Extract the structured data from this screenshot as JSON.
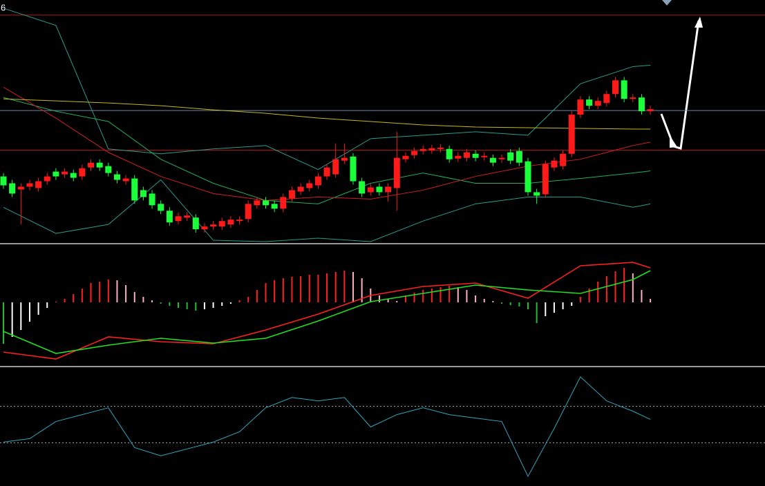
{
  "chart_data": [
    {
      "type": "candlestick",
      "annotation": "6",
      "ylim": [
        0,
        352
      ],
      "up_color": "#ff1a1a",
      "down_color": "#1aff3a",
      "open": [
        97,
        87,
        78,
        82,
        80,
        90,
        104,
        100,
        102,
        97,
        110,
        117,
        112,
        100,
        90,
        94,
        77,
        72,
        57,
        47,
        32,
        37,
        37,
        20,
        24,
        24,
        27,
        32,
        35,
        55,
        62,
        57,
        50,
        65,
        75,
        80,
        84,
        97,
        100,
        120,
        126,
        90,
        74,
        82,
        74,
        80,
        122,
        128,
        134,
        135,
        137,
        137,
        123,
        124,
        130,
        125,
        124,
        122,
        132,
        134,
        119,
        74,
        71,
        110,
        112,
        130,
        187,
        209,
        200,
        204,
        217,
        237,
        210,
        212,
        192
      ],
      "high": [
        102,
        92,
        87,
        92,
        95,
        102,
        109,
        109,
        107,
        114,
        122,
        122,
        117,
        105,
        99,
        99,
        82,
        77,
        62,
        52,
        44,
        45,
        42,
        29,
        32,
        37,
        39,
        39,
        62,
        67,
        67,
        62,
        72,
        82,
        87,
        92,
        102,
        115,
        145,
        145,
        131,
        95,
        86,
        87,
        87,
        162,
        132,
        139,
        142,
        143,
        144,
        142,
        132,
        137,
        135,
        132,
        129,
        129,
        137,
        139,
        124,
        79,
        120,
        125,
        135,
        192,
        214,
        214,
        212,
        222,
        242,
        242,
        217,
        217,
        200
      ],
      "low": [
        79,
        67,
        27,
        77,
        75,
        85,
        92,
        95,
        90,
        92,
        105,
        105,
        97,
        87,
        85,
        57,
        62,
        50,
        42,
        25,
        27,
        32,
        15,
        15,
        19,
        19,
        22,
        27,
        30,
        50,
        50,
        45,
        45,
        60,
        70,
        75,
        79,
        92,
        95,
        115,
        85,
        67,
        69,
        69,
        60,
        47,
        117,
        123,
        129,
        130,
        132,
        117,
        118,
        119,
        119,
        120,
        112,
        117,
        115,
        112,
        69,
        57,
        66,
        105,
        107,
        125,
        182,
        195,
        195,
        199,
        212,
        205,
        205,
        187,
        187
      ],
      "close": [
        84,
        72,
        82,
        87,
        90,
        97,
        97,
        104,
        95,
        109,
        117,
        110,
        102,
        92,
        94,
        62,
        67,
        55,
        47,
        30,
        39,
        40,
        20,
        24,
        27,
        32,
        34,
        34,
        57,
        62,
        55,
        50,
        67,
        77,
        82,
        87,
        97,
        110,
        122,
        124,
        90,
        72,
        81,
        74,
        82,
        124,
        127,
        134,
        137,
        138,
        139,
        122,
        127,
        132,
        124,
        127,
        117,
        124,
        120,
        117,
        74,
        69,
        115,
        120,
        130,
        187,
        209,
        200,
        207,
        217,
        237,
        210,
        212,
        192,
        195
      ],
      "hlines": [
        {
          "value": 332,
          "color": "#b01818"
        },
        {
          "value": 135,
          "color": "#c01818"
        },
        {
          "value": 193,
          "color": "#6a8aa8"
        }
      ],
      "series": [
        {
          "color": "#2a9d8f",
          "x": [
            0,
            6,
            12,
            18,
            24,
            30,
            36,
            42,
            48,
            54,
            60,
            66,
            72,
            74
          ],
          "values": [
            342,
            317,
            137,
            130,
            137,
            142,
            107,
            152,
            157,
            162,
            157,
            232,
            257,
            259
          ]
        },
        {
          "color": "#2a9d8f",
          "x": [
            0,
            6,
            12,
            18,
            24,
            30,
            36,
            42,
            48,
            54,
            60,
            66,
            72,
            74
          ],
          "values": [
            52,
            14,
            27,
            92,
            4,
            2,
            7,
            2,
            32,
            57,
            67,
            67,
            52,
            57
          ]
        },
        {
          "color": "#22b05a",
          "x": [
            0,
            6,
            12,
            18,
            24,
            30,
            36,
            42,
            48,
            54,
            60,
            66,
            72,
            74
          ],
          "values": [
            212,
            192,
            177,
            122,
            87,
            62,
            57,
            87,
            102,
            87,
            87,
            94,
            102,
            105
          ]
        },
        {
          "color": "#d02020",
          "x": [
            0,
            6,
            12,
            18,
            24,
            30,
            36,
            42,
            48,
            54,
            60,
            66,
            72,
            74
          ],
          "values": [
            227,
            182,
            132,
            97,
            72,
            62,
            67,
            64,
            77,
            97,
            112,
            122,
            142,
            147
          ]
        },
        {
          "color": "#c8b820",
          "x": [
            0,
            6,
            12,
            18,
            24,
            30,
            36,
            42,
            48,
            54,
            60,
            66,
            72,
            74
          ],
          "values": [
            210,
            207,
            204,
            200,
            194,
            189,
            182,
            177,
            172,
            169,
            168,
            167,
            166,
            166
          ]
        }
      ]
    },
    {
      "type": "macd",
      "ylim": [
        -92,
        83
      ],
      "colors": {
        "pos_rising": "#ff2020",
        "pos_falling": "#ffb0c0",
        "neg_falling": "#20c030",
        "neg_rising": "#ffffff"
      },
      "values": [
        -60,
        -50,
        -40,
        -28,
        -18,
        -8,
        1,
        5,
        12,
        20,
        28,
        30,
        33,
        32,
        25,
        15,
        8,
        3,
        -2,
        -5,
        -8,
        -10,
        -12,
        -10,
        -8,
        -5,
        -2,
        3,
        8,
        18,
        28,
        32,
        35,
        37,
        38,
        40,
        40,
        42,
        44,
        46,
        44,
        35,
        20,
        10,
        5,
        2,
        10,
        14,
        18,
        20,
        22,
        24,
        22,
        18,
        10,
        5,
        2,
        -2,
        -4,
        -6,
        -10,
        -30,
        -20,
        -15,
        -10,
        -5,
        8,
        20,
        30,
        38,
        45,
        50,
        42,
        18,
        5
      ],
      "series": [
        {
          "color": "#ff2020",
          "x": [
            0,
            6,
            12,
            18,
            24,
            30,
            36,
            42,
            48,
            54,
            60,
            66,
            72,
            74
          ],
          "values": [
            -72,
            -82,
            -50,
            -57,
            -60,
            -40,
            -17,
            10,
            23,
            28,
            6,
            53,
            58,
            50
          ]
        },
        {
          "color": "#20e020",
          "x": [
            0,
            6,
            12,
            18,
            24,
            30,
            36,
            42,
            48,
            54,
            60,
            66,
            72,
            74
          ],
          "values": [
            -42,
            -74,
            -62,
            -52,
            -59,
            -52,
            -27,
            1,
            13,
            25,
            18,
            13,
            33,
            46
          ]
        }
      ]
    },
    {
      "type": "line",
      "ylim": [
        0,
        172
      ],
      "hlines": [
        {
          "value": 116,
          "color": "#aaaaaa"
        },
        {
          "value": 63,
          "color": "#aaaaaa"
        }
      ],
      "series": [
        {
          "color": "#30a8c0",
          "x": [
            0,
            3,
            6,
            9,
            12,
            15,
            18,
            21,
            24,
            27,
            30,
            33,
            36,
            39,
            42,
            45,
            48,
            51,
            54,
            57,
            60,
            63,
            66,
            69,
            72,
            74
          ],
          "values": [
            64,
            69,
            94,
            104,
            114,
            56,
            44,
            54,
            64,
            79,
            114,
            129,
            124,
            129,
            86,
            104,
            114,
            104,
            99,
            94,
            14,
            84,
            159,
            124,
            109,
            97
          ]
        }
      ]
    }
  ]
}
